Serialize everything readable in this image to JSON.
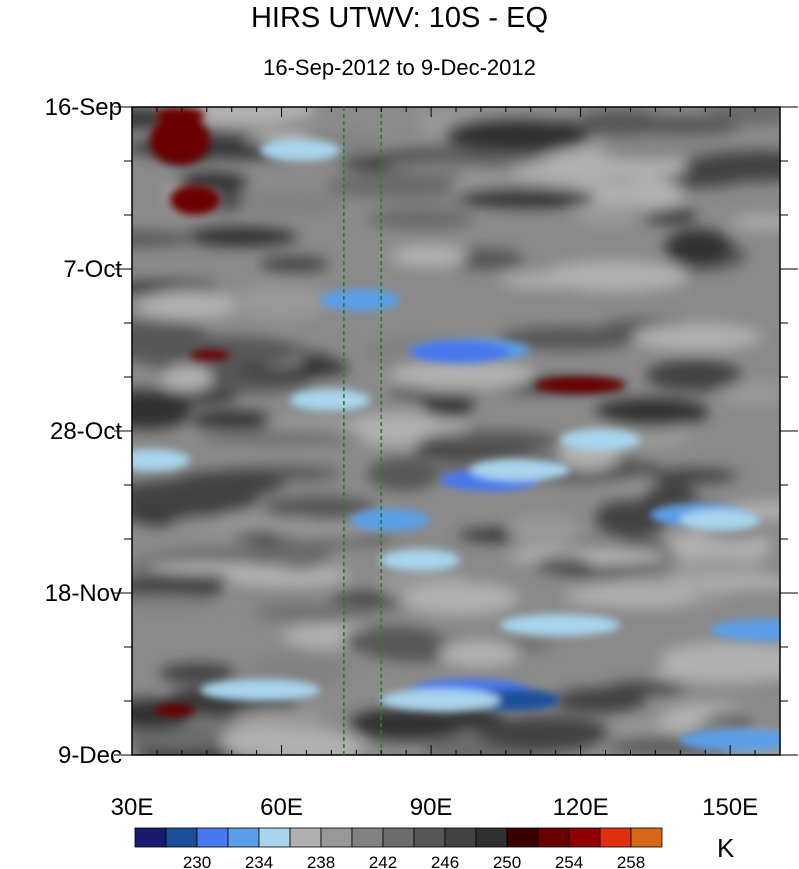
{
  "chart_data": {
    "type": "heatmap",
    "title": "HIRS UTWV: 10S - EQ",
    "subtitle": "16-Sep-2012 to 9-Dec-2012",
    "xlabel": "",
    "ylabel": "",
    "x_range": [
      "30E",
      "160E"
    ],
    "y_range": [
      "16-Sep-2012",
      "9-Dec-2012"
    ],
    "x_ticks": [
      "30E",
      "60E",
      "90E",
      "120E",
      "150E"
    ],
    "x_tick_values": [
      30,
      60,
      90,
      120,
      150
    ],
    "y_ticks": [
      "16-Sep",
      "7-Oct",
      "28-Oct",
      "18-Nov",
      "9-Dec"
    ],
    "y_tick_values": [
      0,
      21,
      42,
      63,
      84
    ],
    "reference_lines_lon": [
      72.5,
      80
    ],
    "colorbar": {
      "unit": "K",
      "labeled_levels": [
        "230",
        "234",
        "238",
        "242",
        "246",
        "250",
        "254",
        "258"
      ],
      "colors": [
        "#1a1a6e",
        "#1c4f9a",
        "#4a78f0",
        "#5a9ee8",
        "#a8d4ec",
        "#b0b0b0",
        "#989898",
        "#828282",
        "#6c6c6c",
        "#565656",
        "#424242",
        "#303030",
        "#3a0000",
        "#6a0000",
        "#900000",
        "#e03010",
        "#d86818"
      ]
    }
  }
}
